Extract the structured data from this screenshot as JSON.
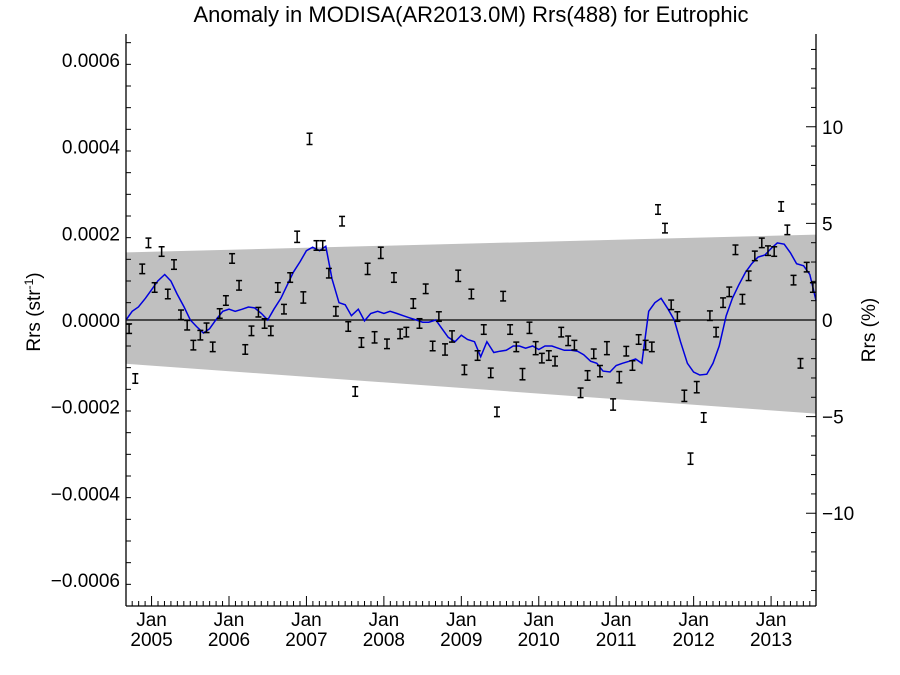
{
  "chart_data": {
    "type": "line",
    "title": "Anomaly in MODISA(AR2013.0M) Rrs(488) for Eutrophic",
    "ylabel": "Rrs (str",
    "ylabel_sup": "-1",
    "ylabel_end": ")",
    "y2label": "Rrs (%)",
    "ylim": [
      -0.00066,
      0.00066
    ],
    "y2lim": [
      -14.8,
      14.8
    ],
    "xlim": [
      2004.67,
      2013.58
    ],
    "yticks": [
      {
        "v": 0.0006,
        "label": "0.0006"
      },
      {
        "v": 0.0004,
        "label": "0.0004"
      },
      {
        "v": 0.0002,
        "label": "0.0002"
      },
      {
        "v": 0.0,
        "label": "0.0000"
      },
      {
        "v": -0.0002,
        "label": "−0.0002"
      },
      {
        "v": -0.0004,
        "label": "−0.0004"
      },
      {
        "v": -0.0006,
        "label": "−0.0006"
      }
    ],
    "y2ticks": [
      {
        "v": 10,
        "label": "10"
      },
      {
        "v": 5,
        "label": "5"
      },
      {
        "v": 0,
        "label": "0"
      },
      {
        "v": -5,
        "label": "−5"
      },
      {
        "v": -10,
        "label": "−10"
      }
    ],
    "xticks": [
      {
        "v": 2005,
        "month": "Jan",
        "year": "2005"
      },
      {
        "v": 2006,
        "month": "Jan",
        "year": "2006"
      },
      {
        "v": 2007,
        "month": "Jan",
        "year": "2007"
      },
      {
        "v": 2008,
        "month": "Jan",
        "year": "2008"
      },
      {
        "v": 2009,
        "month": "Jan",
        "year": "2009"
      },
      {
        "v": 2010,
        "month": "Jan",
        "year": "2010"
      },
      {
        "v": 2011,
        "month": "Jan",
        "year": "2011"
      },
      {
        "v": 2012,
        "month": "Jan",
        "year": "2012"
      },
      {
        "v": 2013,
        "month": "Jan",
        "year": "2013"
      }
    ],
    "band": {
      "x": [
        2004.67,
        2013.58
      ],
      "upper": [
        0.000156,
        0.000197
      ],
      "lower": [
        -0.000101,
        -0.000216
      ],
      "color": "#c0c0c0"
    },
    "zero_line": 0,
    "series": [
      {
        "type": "errorbar",
        "color": "#000000",
        "x": [
          2004.71,
          2004.79,
          2004.88,
          2004.96,
          2005.04,
          2005.13,
          2005.21,
          2005.29,
          2005.38,
          2005.46,
          2005.54,
          2005.63,
          2005.71,
          2005.79,
          2005.88,
          2005.96,
          2006.04,
          2006.13,
          2006.21,
          2006.29,
          2006.38,
          2006.46,
          2006.54,
          2006.63,
          2006.71,
          2006.79,
          2006.88,
          2006.96,
          2007.04,
          2007.13,
          2007.21,
          2007.29,
          2007.38,
          2007.46,
          2007.54,
          2007.63,
          2007.71,
          2007.79,
          2007.88,
          2007.96,
          2008.04,
          2008.13,
          2008.21,
          2008.29,
          2008.38,
          2008.46,
          2008.54,
          2008.63,
          2008.71,
          2008.79,
          2008.88,
          2008.96,
          2009.04,
          2009.13,
          2009.21,
          2009.29,
          2009.38,
          2009.46,
          2009.54,
          2009.63,
          2009.71,
          2009.79,
          2009.88,
          2009.96,
          2010.04,
          2010.13,
          2010.21,
          2010.29,
          2010.38,
          2010.46,
          2010.54,
          2010.63,
          2010.71,
          2010.79,
          2010.88,
          2010.96,
          2011.04,
          2011.13,
          2011.21,
          2011.29,
          2011.38,
          2011.46,
          2011.54,
          2011.63,
          2011.71,
          2011.79,
          2011.88,
          2011.96,
          2012.04,
          2012.13,
          2012.21,
          2012.29,
          2012.38,
          2012.46,
          2012.54,
          2012.63,
          2012.71,
          2012.79,
          2012.88,
          2012.96,
          2013.04,
          2013.13,
          2013.21,
          2013.29,
          2013.38,
          2013.46,
          2013.54
        ],
        "y": [
          -2e-05,
          -0.000135,
          0.000118,
          0.000178,
          7.5e-05,
          0.000158,
          6e-05,
          0.000128,
          1.2e-05,
          -1.2e-05,
          -5.8e-05,
          -3.5e-05,
          -1.8e-05,
          -6.2e-05,
          1.5e-05,
          4.5e-05,
          0.000142,
          8e-05,
          -6.8e-05,
          -2.5e-05,
          1.8e-05,
          -8e-06,
          -2.5e-05,
          7.5e-05,
          2.5e-05,
          9.8e-05,
          0.000192,
          5.2e-05,
          0.000418,
          0.000172,
          0.000172,
          0.000108,
          2e-05,
          0.000228,
          -1.5e-05,
          -0.000165,
          -5.2e-05,
          0.000118,
          -4e-05,
          0.000155,
          -5.5e-05,
          9.8e-05,
          -3.2e-05,
          -2.8e-05,
          3.8e-05,
          -8e-06,
          7.2e-05,
          -6e-05,
          8e-06,
          -6.8e-05,
          -3.8e-05,
          0.000102,
          -0.000115,
          6e-05,
          -8.2e-05,
          -2.2e-05,
          -0.000122,
          -0.000212,
          5.5e-05,
          -2.2e-05,
          -6.2e-05,
          -0.000125,
          -1.8e-05,
          -6.5e-05,
          -8.8e-05,
          -8.2e-05,
          -9.5e-05,
          -2.8e-05,
          -4.8e-05,
          -5.8e-05,
          -0.000168,
          -0.000128,
          -7.8e-05,
          -0.000118,
          -6.5e-05,
          -0.000195,
          -0.000132,
          -7.2e-05,
          -0.000105,
          -4.5e-05,
          -5.8e-05,
          -6.2e-05,
          0.000255,
          0.000212,
          3.5e-05,
          8e-06,
          -0.000175,
          -0.00032,
          -0.000155,
          -0.000225,
          1e-05,
          -2.8e-05,
          4e-05,
          6.5e-05,
          0.000162,
          4.8e-05,
          0.000102,
          0.000148,
          0.000178,
          0.00016,
          0.000158,
          0.000262,
          0.000208,
          9.2e-05,
          -0.0001,
          0.000122,
          7.5e-05
        ],
        "err": [
          1.1e-05,
          1.1e-05,
          1.1e-05,
          1.1e-05,
          1.1e-05,
          1.1e-05,
          1.1e-05,
          1.1e-05,
          1.1e-05,
          1.1e-05,
          1.1e-05,
          1.1e-05,
          1.1e-05,
          1.1e-05,
          1.1e-05,
          1.1e-05,
          1.1e-05,
          1.1e-05,
          1.1e-05,
          1.1e-05,
          1.1e-05,
          1.1e-05,
          1.1e-05,
          1.1e-05,
          1.1e-05,
          1.1e-05,
          1.3e-05,
          1.3e-05,
          1.3e-05,
          1.1e-05,
          1.1e-05,
          1.1e-05,
          1.1e-05,
          1.1e-05,
          1.1e-05,
          1.1e-05,
          1.1e-05,
          1.3e-05,
          1.3e-05,
          1.3e-05,
          1.1e-05,
          1.1e-05,
          1.1e-05,
          1.1e-05,
          1.1e-05,
          1.1e-05,
          1.1e-05,
          1.1e-05,
          1.1e-05,
          1.3e-05,
          1.3e-05,
          1.3e-05,
          1.1e-05,
          1.1e-05,
          1.1e-05,
          1.1e-05,
          1.1e-05,
          1.1e-05,
          1.1e-05,
          1.1e-05,
          1.1e-05,
          1.3e-05,
          1.3e-05,
          1.5e-05,
          1.1e-05,
          1.1e-05,
          1.1e-05,
          1.1e-05,
          1.1e-05,
          1.1e-05,
          1.1e-05,
          1.1e-05,
          1.1e-05,
          1.3e-05,
          1.5e-05,
          1.3e-05,
          1.3e-05,
          1.1e-05,
          1.1e-05,
          1.1e-05,
          1.1e-05,
          1.1e-05,
          1.1e-05,
          1.1e-05,
          1.1e-05,
          1.1e-05,
          1.3e-05,
          1.3e-05,
          1.3e-05,
          1.1e-05,
          1.1e-05,
          1.1e-05,
          1.1e-05,
          1.1e-05,
          1.1e-05,
          1.1e-05,
          1.1e-05,
          1.1e-05,
          1.1e-05,
          1.1e-05,
          1.1e-05,
          1.1e-05,
          1.1e-05,
          1.1e-05,
          1.1e-05,
          1.1e-05,
          1.1e-05
        ]
      },
      {
        "type": "line",
        "color": "#0000dd",
        "x": [
          2004.67,
          2004.75,
          2004.83,
          2004.92,
          2005.0,
          2005.08,
          2005.17,
          2005.25,
          2005.33,
          2005.42,
          2005.5,
          2005.58,
          2005.67,
          2005.75,
          2005.83,
          2005.92,
          2006.0,
          2006.08,
          2006.17,
          2006.25,
          2006.33,
          2006.42,
          2006.5,
          2006.58,
          2006.67,
          2006.75,
          2006.83,
          2006.92,
          2007.0,
          2007.08,
          2007.17,
          2007.25,
          2007.33,
          2007.42,
          2007.5,
          2007.58,
          2007.67,
          2007.75,
          2007.83,
          2007.92,
          2008.0,
          2008.08,
          2008.17,
          2008.25,
          2008.33,
          2008.42,
          2008.5,
          2008.58,
          2008.67,
          2008.75,
          2008.83,
          2008.92,
          2009.0,
          2009.08,
          2009.17,
          2009.25,
          2009.33,
          2009.42,
          2009.5,
          2009.58,
          2009.67,
          2009.75,
          2009.83,
          2009.92,
          2010.0,
          2010.08,
          2010.17,
          2010.25,
          2010.33,
          2010.42,
          2010.5,
          2010.58,
          2010.67,
          2010.75,
          2010.83,
          2010.92,
          2011.0,
          2011.08,
          2011.17,
          2011.25,
          2011.33,
          2011.42,
          2011.5,
          2011.58,
          2011.67,
          2011.75,
          2011.83,
          2011.92,
          2012.0,
          2012.08,
          2012.17,
          2012.25,
          2012.33,
          2012.42,
          2012.5,
          2012.58,
          2012.67,
          2012.75,
          2012.83,
          2012.92,
          2013.0,
          2013.08,
          2013.17,
          2013.25,
          2013.33,
          2013.42,
          2013.5,
          2013.58
        ],
        "y": [
          0.0,
          2e-05,
          3e-05,
          5e-05,
          7e-05,
          9e-05,
          0.000105,
          9e-05,
          6e-05,
          3e-05,
          0.0,
          -1.5e-05,
          -3e-05,
          -2e-05,
          0.0,
          2e-05,
          2.5e-05,
          2e-05,
          2.5e-05,
          3e-05,
          2.8e-05,
          1.5e-05,
          0.0,
          2.5e-05,
          5e-05,
          8e-05,
          0.00011,
          0.000135,
          0.00016,
          0.000168,
          0.00016,
          0.00017,
          9.5e-05,
          4e-05,
          3.5e-05,
          1e-05,
          2.5e-05,
          -2e-06,
          1.5e-05,
          2e-05,
          1.5e-05,
          2e-05,
          1.5e-05,
          1e-05,
          5e-06,
          0.0,
          -5e-06,
          -5e-06,
          0.0,
          -2e-05,
          -4e-05,
          -5e-05,
          -3.5e-05,
          -4.5e-05,
          -5e-05,
          -8.5e-05,
          -5e-05,
          -7.5e-05,
          -7.2e-05,
          -7e-05,
          -6e-05,
          -6e-05,
          -6.5e-05,
          -6e-05,
          -6.8e-05,
          -6e-05,
          -6e-05,
          -6.5e-05,
          -7e-05,
          -7e-05,
          -7.2e-05,
          -8e-05,
          -9.5e-05,
          -0.0001,
          -0.000118,
          -0.00012,
          -0.000105,
          -0.0001,
          -9.5e-05,
          -9e-05,
          -0.0001,
          2e-05,
          4e-05,
          5e-05,
          2.5e-05,
          0.0,
          -5e-05,
          -0.0001,
          -0.00012,
          -0.000127,
          -0.000125,
          -0.0001,
          -6e-05,
          1e-05,
          5e-05,
          8e-05,
          0.00011,
          0.00013,
          0.000145,
          0.00015,
          0.000165,
          0.000178,
          0.000175,
          0.000155,
          0.00013,
          0.000125,
          0.000105,
          4.5e-05
        ]
      }
    ]
  }
}
